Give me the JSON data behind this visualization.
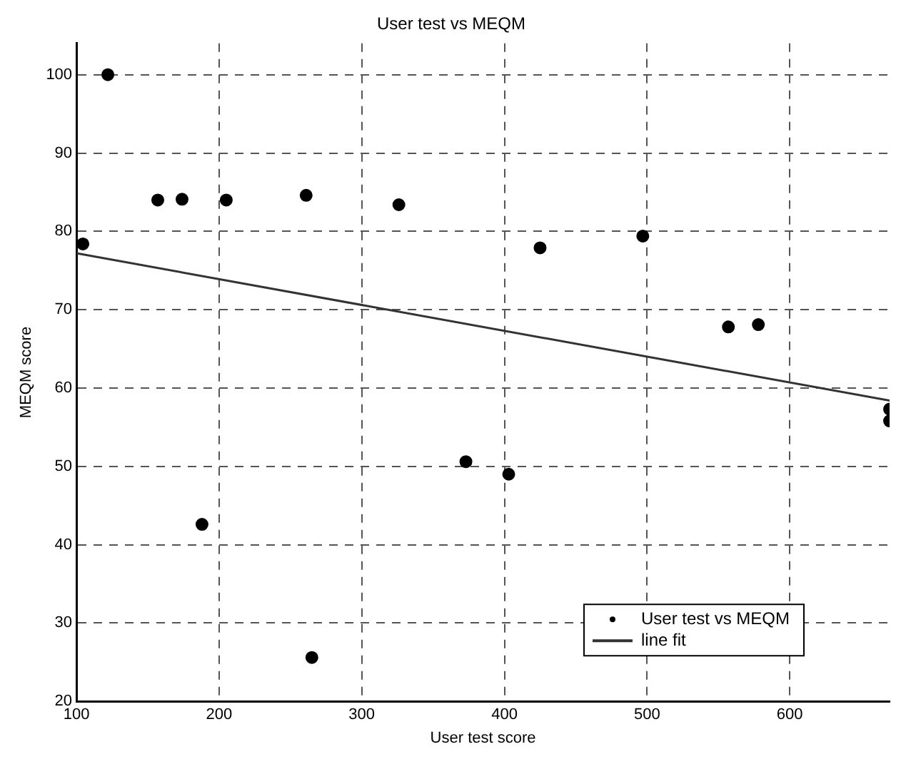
{
  "chart_data": {
    "type": "scatter",
    "title": "User test vs MEQM",
    "xlabel": "User test score",
    "ylabel": "MEQM score",
    "xlim": [
      100,
      670
    ],
    "xticks": [
      100,
      200,
      300,
      400,
      500,
      600
    ],
    "ylim": [
      20,
      104
    ],
    "yticks": [
      20,
      30,
      40,
      50,
      60,
      70,
      80,
      90,
      100
    ],
    "grid": true,
    "legend": "bottom right",
    "series": [
      {
        "name": "User test vs MEQM",
        "color": "#000000",
        "marker": "circle",
        "x": [
          104.5,
          122,
          157,
          174,
          188,
          205,
          261,
          265,
          326,
          373,
          403,
          425,
          497,
          557,
          578,
          670,
          670
        ],
        "values": [
          78.4,
          100,
          84.0,
          84.1,
          42.6,
          84.0,
          84.6,
          25.6,
          83.4,
          50.6,
          49.0,
          77.9,
          79.4,
          67.8,
          68.1,
          57.3,
          55.8
        ]
      },
      {
        "name": "line fit",
        "type": "line",
        "color": "#333333",
        "line_style": "solid",
        "marker": "none",
        "x": [
          100,
          670
        ],
        "values": [
          77.2,
          58.4
        ]
      }
    ]
  }
}
